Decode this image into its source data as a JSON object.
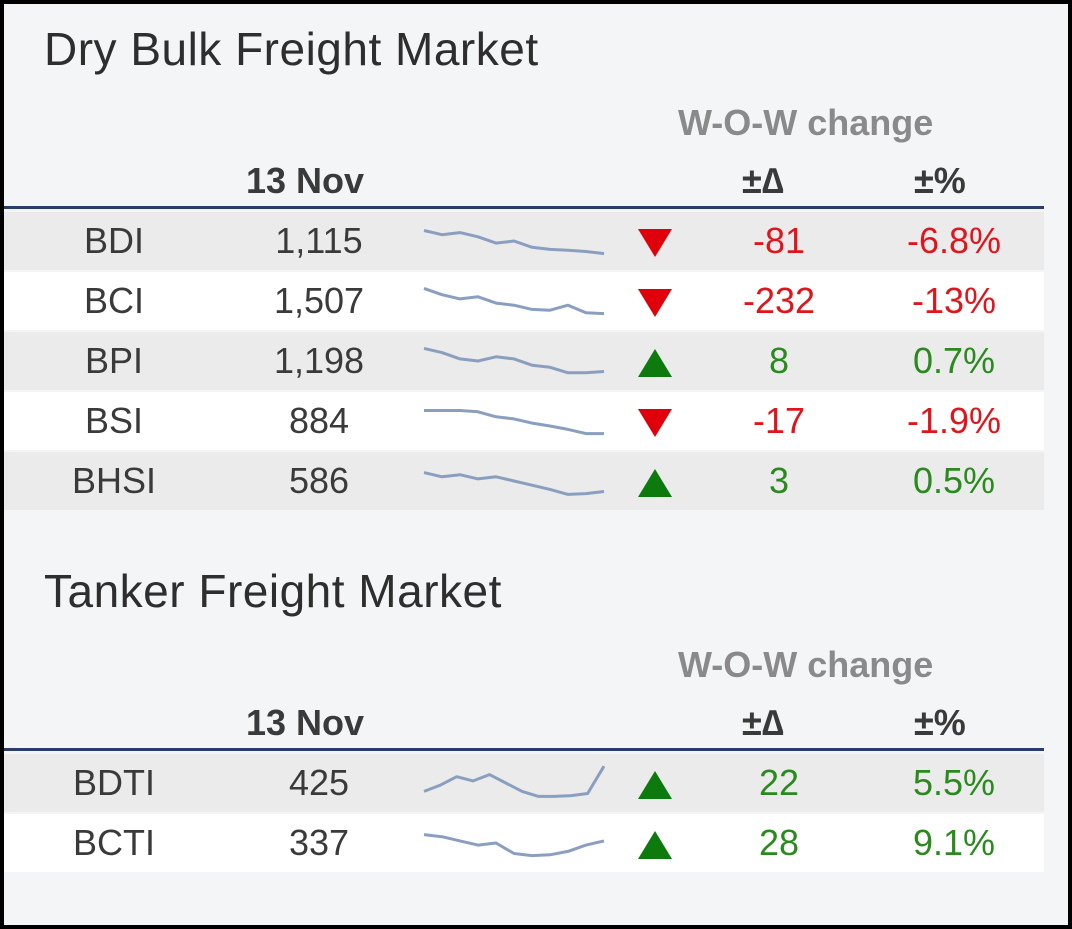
{
  "dry_bulk": {
    "title": "Dry Bulk Freight Market",
    "wow_label": "W-O-W change",
    "date_header": "13 Nov",
    "delta_header": "±∆",
    "pct_header": "±%",
    "rows": [
      {
        "name": "BDI",
        "value": "1,115",
        "direction": "down",
        "delta": "-81",
        "pct": "-6.8%",
        "trend": [
          0.25,
          0.35,
          0.3,
          0.4,
          0.55,
          0.5,
          0.65,
          0.7,
          0.72,
          0.75,
          0.8
        ]
      },
      {
        "name": "BCI",
        "value": "1,507",
        "direction": "down",
        "delta": "-232",
        "pct": "-13%",
        "trend": [
          0.2,
          0.35,
          0.45,
          0.4,
          0.55,
          0.6,
          0.7,
          0.72,
          0.6,
          0.78,
          0.8
        ]
      },
      {
        "name": "BPI",
        "value": "1,198",
        "direction": "up",
        "delta": "8",
        "pct": "0.7%",
        "trend": [
          0.2,
          0.3,
          0.45,
          0.5,
          0.4,
          0.45,
          0.6,
          0.65,
          0.78,
          0.78,
          0.75
        ]
      },
      {
        "name": "BSI",
        "value": "884",
        "direction": "down",
        "delta": "-17",
        "pct": "-1.9%",
        "trend": [
          0.25,
          0.25,
          0.25,
          0.28,
          0.4,
          0.45,
          0.55,
          0.62,
          0.7,
          0.8,
          0.8
        ]
      },
      {
        "name": "BHSI",
        "value": "586",
        "direction": "up",
        "delta": "3",
        "pct": "0.5%",
        "trend": [
          0.3,
          0.4,
          0.35,
          0.45,
          0.4,
          0.5,
          0.6,
          0.7,
          0.82,
          0.8,
          0.75
        ]
      }
    ]
  },
  "tanker": {
    "title": "Tanker Freight Market",
    "wow_label": "W-O-W change",
    "date_header": "13 Nov",
    "delta_header": "±∆",
    "pct_header": "±%",
    "rows": [
      {
        "name": "BDTI",
        "value": "425",
        "direction": "up",
        "delta": "22",
        "pct": "5.5%",
        "trend": [
          0.7,
          0.55,
          0.35,
          0.45,
          0.3,
          0.5,
          0.7,
          0.82,
          0.82,
          0.8,
          0.75,
          0.1
        ]
      },
      {
        "name": "BCTI",
        "value": "337",
        "direction": "up",
        "delta": "28",
        "pct": "9.1%",
        "trend": [
          0.3,
          0.35,
          0.45,
          0.55,
          0.5,
          0.75,
          0.8,
          0.78,
          0.7,
          0.55,
          0.45
        ]
      }
    ]
  },
  "colors": {
    "negative": "#e1141b",
    "positive": "#2a8a1e",
    "sparkline": "#8a9fc0",
    "rule": "#2b3e6b"
  }
}
